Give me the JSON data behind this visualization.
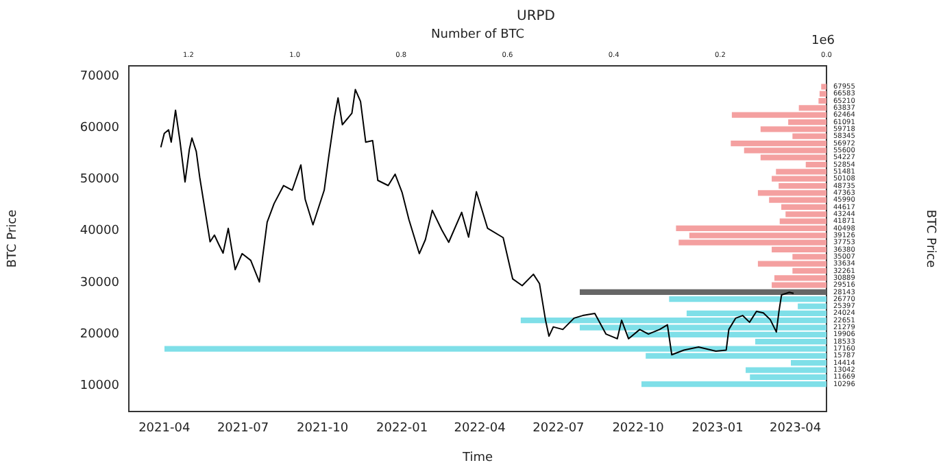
{
  "chart_data": [
    {
      "type": "line",
      "xlabel": "Time",
      "ylabel": "BTC Price",
      "xlim": [
        "2021-02-19",
        "2023-05-07"
      ],
      "xticks": [
        "2021-04",
        "2021-07",
        "2021-10",
        "2022-01",
        "2022-04",
        "2022-07",
        "2022-10",
        "2023-01",
        "2023-04"
      ],
      "ylim": [
        5000,
        72000
      ],
      "yticks": [
        10000,
        20000,
        30000,
        40000,
        50000,
        60000,
        70000
      ],
      "grid": false,
      "legend": false,
      "marker": "none",
      "line_style": "solid",
      "series": [
        {
          "color": "#000000",
          "x": [
            "2021-03-28",
            "2021-04-01",
            "2021-04-06",
            "2021-04-09",
            "2021-04-14",
            "2021-04-19",
            "2021-04-25",
            "2021-04-30",
            "2021-05-03",
            "2021-05-08",
            "2021-05-12",
            "2021-05-21",
            "2021-05-24",
            "2021-05-29",
            "2021-06-03",
            "2021-06-08",
            "2021-06-14",
            "2021-06-22",
            "2021-06-30",
            "2021-07-10",
            "2021-07-20",
            "2021-07-29",
            "2021-08-06",
            "2021-08-17",
            "2021-08-27",
            "2021-09-06",
            "2021-09-11",
            "2021-09-20",
            "2021-10-03",
            "2021-10-08",
            "2021-10-15",
            "2021-10-19",
            "2021-10-24",
            "2021-11-04",
            "2021-11-08",
            "2021-11-14",
            "2021-11-20",
            "2021-11-28",
            "2021-12-04",
            "2021-12-16",
            "2021-12-24",
            "2022-01-01",
            "2022-01-09",
            "2022-01-21",
            "2022-01-28",
            "2022-02-05",
            "2022-02-16",
            "2022-02-24",
            "2022-03-11",
            "2022-03-19",
            "2022-03-28",
            "2022-04-10",
            "2022-04-28",
            "2022-05-09",
            "2022-05-20",
            "2022-06-02",
            "2022-06-09",
            "2022-06-16",
            "2022-06-20",
            "2022-06-25",
            "2022-07-06",
            "2022-07-19",
            "2022-07-29",
            "2022-08-12",
            "2022-08-25",
            "2022-09-07",
            "2022-09-12",
            "2022-09-20",
            "2022-10-03",
            "2022-10-13",
            "2022-10-26",
            "2022-11-04",
            "2022-11-09",
            "2022-11-23",
            "2022-12-10",
            "2022-12-30",
            "2023-01-11",
            "2023-01-14",
            "2023-01-22",
            "2023-01-30",
            "2023-02-07",
            "2023-02-15",
            "2023-02-23",
            "2023-03-03",
            "2023-03-10",
            "2023-03-13",
            "2023-03-16",
            "2023-03-25",
            "2023-03-30"
          ],
          "values": [
            56200,
            58900,
            59600,
            57200,
            63400,
            57600,
            49500,
            55800,
            58000,
            55400,
            50400,
            41000,
            37900,
            39200,
            37400,
            35700,
            40500,
            32500,
            35600,
            34300,
            30100,
            41700,
            45300,
            48800,
            47900,
            52800,
            46100,
            41200,
            47900,
            54100,
            62200,
            65800,
            60600,
            62800,
            67400,
            65100,
            57200,
            57500,
            49800,
            48800,
            51000,
            47500,
            42200,
            35600,
            38300,
            44000,
            40200,
            37800,
            43600,
            38800,
            47600,
            40500,
            38700,
            30700,
            29400,
            31600,
            29800,
            22700,
            19600,
            21400,
            20900,
            23100,
            23600,
            24000,
            20000,
            19100,
            22700,
            19100,
            20900,
            20000,
            20900,
            21800,
            16000,
            16900,
            17500,
            16700,
            16900,
            20900,
            23100,
            23600,
            22300,
            24400,
            24100,
            22800,
            20400,
            24400,
            27600,
            28100,
            27900
          ]
        }
      ]
    },
    {
      "type": "bar",
      "orientation": "horizontal",
      "title": "URPD",
      "xlabel": "Number of BTC",
      "ylabel": "BTC Price",
      "annotations": [
        "1e6"
      ],
      "xlim": [
        1.312,
        0
      ],
      "xticks": [
        {
          "value": 1.2,
          "label": "1.2"
        },
        {
          "value": 1,
          "label": "1.0"
        },
        {
          "value": 0.8,
          "label": "0.8"
        },
        {
          "value": 0.6,
          "label": "0.6"
        },
        {
          "value": 0.4,
          "label": "0.4"
        },
        {
          "value": 0.2,
          "label": "0.2"
        },
        {
          "value": 0,
          "label": "0.0"
        }
      ],
      "grid": false,
      "legend": false,
      "categories": [
        "67955",
        "66583",
        "65210",
        "63837",
        "62464",
        "61091",
        "59718",
        "58345",
        "56972",
        "55600",
        "54227",
        "52854",
        "51481",
        "50108",
        "48735",
        "47363",
        "45990",
        "44617",
        "43244",
        "41871",
        "40498",
        "39126",
        "37753",
        "36380",
        "35007",
        "33634",
        "32261",
        "30889",
        "29516",
        "28143",
        "26770",
        "25397",
        "24024",
        "22651",
        "21279",
        "19906",
        "18533",
        "17160",
        "15787",
        "14414",
        "13042",
        "11669",
        "10296"
      ],
      "values": [
        0.01,
        0.013,
        0.015,
        0.052,
        0.178,
        0.072,
        0.124,
        0.064,
        0.18,
        0.155,
        0.124,
        0.039,
        0.095,
        0.103,
        0.09,
        0.129,
        0.108,
        0.085,
        0.077,
        0.088,
        0.283,
        0.258,
        0.278,
        0.103,
        0.064,
        0.129,
        0.064,
        0.098,
        0.103,
        0.464,
        0.296,
        0.054,
        0.263,
        0.575,
        0.464,
        0.374,
        0.134,
        1.245,
        0.34,
        0.067,
        0.152,
        0.144,
        0.348
      ],
      "colors": [
        "#f4a0a0",
        "#f4a0a0",
        "#f4a0a0",
        "#f4a0a0",
        "#f4a0a0",
        "#f4a0a0",
        "#f4a0a0",
        "#f4a0a0",
        "#f4a0a0",
        "#f4a0a0",
        "#f4a0a0",
        "#f4a0a0",
        "#f4a0a0",
        "#f4a0a0",
        "#f4a0a0",
        "#f4a0a0",
        "#f4a0a0",
        "#f4a0a0",
        "#f4a0a0",
        "#f4a0a0",
        "#f4a0a0",
        "#f4a0a0",
        "#f4a0a0",
        "#f4a0a0",
        "#f4a0a0",
        "#f4a0a0",
        "#f4a0a0",
        "#f4a0a0",
        "#f4a0a0",
        "#666666",
        "#7fdfe8",
        "#7fdfe8",
        "#7fdfe8",
        "#7fdfe8",
        "#7fdfe8",
        "#7fdfe8",
        "#7fdfe8",
        "#7fdfe8",
        "#7fdfe8",
        "#7fdfe8",
        "#7fdfe8",
        "#7fdfe8",
        "#7fdfe8"
      ]
    }
  ]
}
